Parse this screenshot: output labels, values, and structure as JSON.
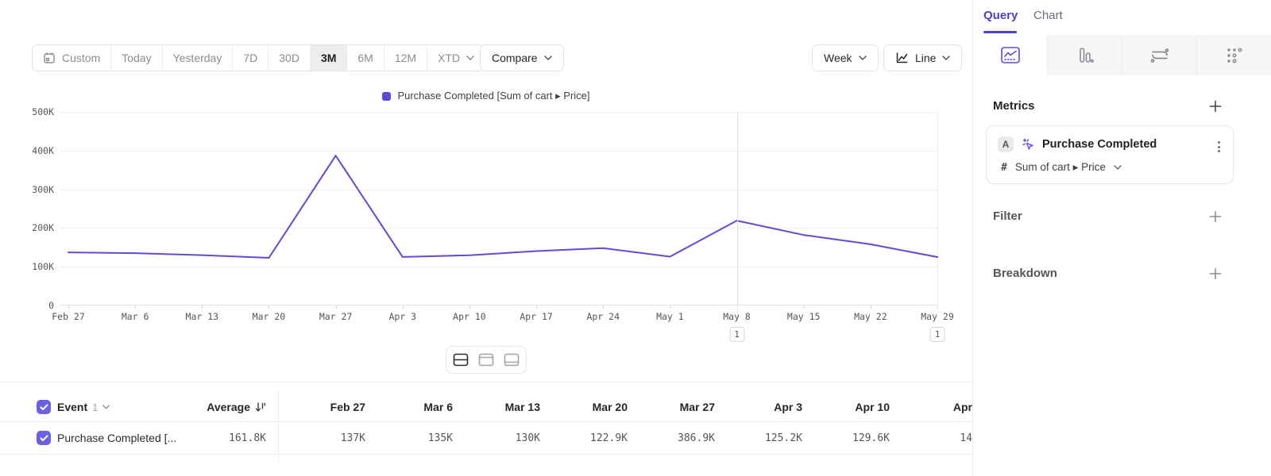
{
  "colors": {
    "accent_line": "#5b4cd9",
    "checkbox": "#6c60e2",
    "tab_active": "#4c3fd4",
    "selected_range_bg": "#ededef"
  },
  "toolbar": {
    "ranges": [
      "Custom",
      "Today",
      "Yesterday",
      "7D",
      "30D",
      "3M",
      "6M",
      "12M",
      "XTD"
    ],
    "selected_range": "3M",
    "compare": "Compare",
    "interval": "Week",
    "chart_type": "Line"
  },
  "chart_data": {
    "type": "line",
    "x": [
      "Feb 27",
      "Mar 6",
      "Mar 13",
      "Mar 20",
      "Mar 27",
      "Apr 3",
      "Apr 10",
      "Apr 17",
      "Apr 24",
      "May 1",
      "May 8",
      "May 15",
      "May 22",
      "May 29"
    ],
    "series": [
      {
        "name": "Purchase Completed [Sum of cart ▸ Price]",
        "color": "#5b4cd9",
        "values": [
          137000,
          135000,
          130000,
          122900,
          386900,
          125200,
          129600,
          140300,
          148000,
          126000,
          219000,
          182000,
          158000,
          125000
        ]
      }
    ],
    "ylim": [
      0,
      500000
    ],
    "yticks": [
      "0",
      "100K",
      "200K",
      "300K",
      "400K",
      "500K"
    ],
    "grid": true,
    "legend_position": "top",
    "annotations": [
      {
        "at": "May 8",
        "label": "1",
        "line": true
      },
      {
        "at": "May 29",
        "label": "1",
        "line": false
      }
    ]
  },
  "layout_toggles": [
    "split-view",
    "chart-only",
    "table-only"
  ],
  "table": {
    "event_label": "Event",
    "event_count": "1",
    "average_label": "Average",
    "columns": [
      "Feb 27",
      "Mar 6",
      "Mar 13",
      "Mar 20",
      "Mar 27",
      "Apr 3",
      "Apr 10",
      "Apr"
    ],
    "row": {
      "name": "Purchase Completed [...",
      "average": "161.8K",
      "values": [
        "137K",
        "135K",
        "130K",
        "122.9K",
        "386.9K",
        "125.2K",
        "129.6K",
        "14"
      ]
    }
  },
  "panel": {
    "tabs": {
      "query": "Query",
      "chart": "Chart"
    },
    "chart_type_icons": [
      "insights-line",
      "bar",
      "flows",
      "retention"
    ],
    "metrics_title": "Metrics",
    "metric": {
      "letter": "A",
      "name": "Purchase Completed",
      "aggregation": "Sum of cart ▸ Price"
    },
    "filter_title": "Filter",
    "breakdown_title": "Breakdown"
  }
}
